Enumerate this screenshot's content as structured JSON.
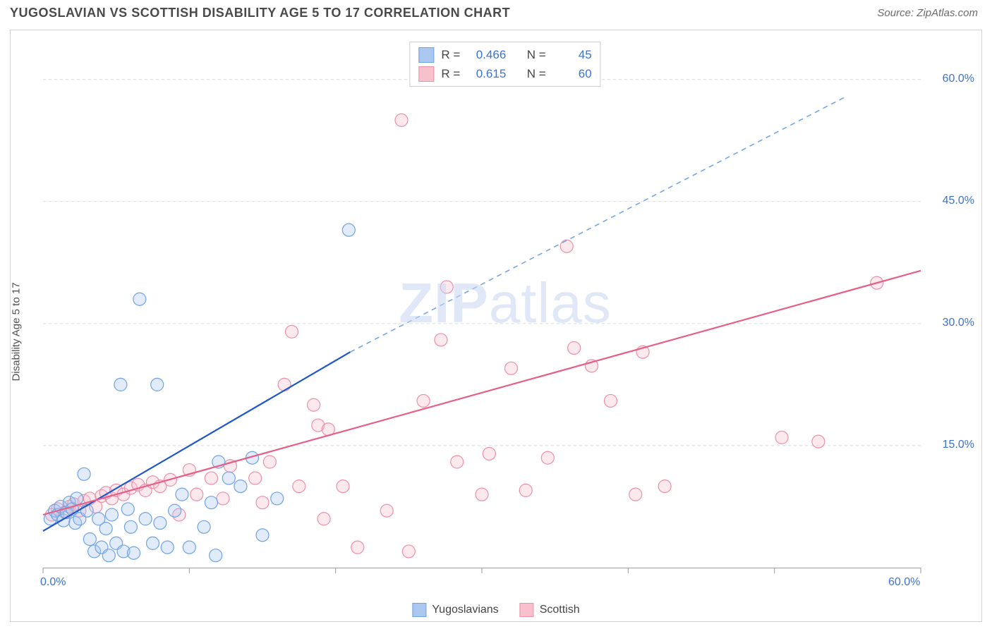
{
  "header": {
    "title": "YUGOSLAVIAN VS SCOTTISH DISABILITY AGE 5 TO 17 CORRELATION CHART",
    "source_prefix": "Source: ",
    "source_name": "ZipAtlas.com"
  },
  "y_axis_label": "Disability Age 5 to 17",
  "watermark": {
    "left": "ZIP",
    "right": "atlas"
  },
  "chart": {
    "type": "scatter",
    "background_color": "#ffffff",
    "grid_color": "#d9d9d9",
    "grid_dash": "4,4",
    "border_color": "#d0d0d0",
    "axis_color": "#9a9a9a",
    "tick_label_color": "#3b72d4",
    "tick_label_fontsize": 16,
    "xlim": [
      0,
      60
    ],
    "ylim": [
      0,
      65
    ],
    "x_ticks": [
      0,
      10,
      20,
      30,
      40,
      50,
      60
    ],
    "x_tick_labels": [
      "0.0%",
      "",
      "",
      "",
      "",
      "",
      "60.0%"
    ],
    "y_ticks": [
      15,
      30,
      45,
      60
    ],
    "y_tick_labels": [
      "15.0%",
      "30.0%",
      "45.0%",
      "60.0%"
    ],
    "marker_radius": 9,
    "marker_stroke_width": 1.2,
    "marker_fill_opacity": 0.35,
    "series": [
      {
        "name": "Yugoslavians",
        "color_fill": "#a9c7ef",
        "color_stroke": "#6fa3e3",
        "points": [
          [
            0.5,
            6.0
          ],
          [
            0.8,
            7.0
          ],
          [
            1.0,
            6.5
          ],
          [
            1.2,
            7.5
          ],
          [
            1.4,
            5.8
          ],
          [
            1.6,
            6.8
          ],
          [
            1.8,
            8.0
          ],
          [
            2.0,
            7.2
          ],
          [
            2.2,
            5.5
          ],
          [
            2.5,
            6.0
          ],
          [
            2.8,
            11.5
          ],
          [
            3.0,
            7.0
          ],
          [
            3.2,
            3.5
          ],
          [
            3.5,
            2.0
          ],
          [
            4.0,
            2.5
          ],
          [
            4.3,
            4.8
          ],
          [
            4.5,
            1.5
          ],
          [
            5.0,
            3.0
          ],
          [
            5.3,
            22.5
          ],
          [
            5.5,
            2.0
          ],
          [
            5.8,
            7.2
          ],
          [
            6.0,
            5.0
          ],
          [
            6.2,
            1.8
          ],
          [
            6.6,
            33.0
          ],
          [
            7.0,
            6.0
          ],
          [
            7.5,
            3.0
          ],
          [
            7.8,
            22.5
          ],
          [
            8.0,
            5.5
          ],
          [
            8.5,
            2.5
          ],
          [
            9.0,
            7.0
          ],
          [
            9.5,
            9.0
          ],
          [
            10.0,
            2.5
          ],
          [
            11.0,
            5.0
          ],
          [
            11.5,
            8.0
          ],
          [
            12.0,
            13.0
          ],
          [
            12.7,
            11.0
          ],
          [
            13.5,
            10.0
          ],
          [
            14.3,
            13.5
          ],
          [
            15.0,
            4.0
          ],
          [
            16.0,
            8.5
          ],
          [
            20.9,
            41.5
          ],
          [
            11.8,
            1.5
          ],
          [
            3.8,
            6.0
          ],
          [
            4.7,
            6.5
          ],
          [
            2.3,
            8.5
          ]
        ],
        "trend": {
          "x1": 0,
          "y1": 4.5,
          "x2": 21,
          "y2": 26.5,
          "ext_x2": 55,
          "ext_y2": 58.0,
          "line_width": 2.2,
          "solid_color": "#1e57c9",
          "dash_color": "#6fa3e3",
          "dash": "7,6"
        }
      },
      {
        "name": "Scottish",
        "color_fill": "#f6c0cd",
        "color_stroke": "#ec8fa8",
        "points": [
          [
            0.6,
            6.5
          ],
          [
            1.0,
            7.2
          ],
          [
            1.5,
            6.8
          ],
          [
            1.8,
            7.5
          ],
          [
            2.1,
            7.8
          ],
          [
            2.5,
            7.0
          ],
          [
            2.8,
            8.2
          ],
          [
            3.2,
            8.5
          ],
          [
            3.6,
            7.5
          ],
          [
            4.0,
            8.8
          ],
          [
            4.3,
            9.2
          ],
          [
            4.7,
            8.5
          ],
          [
            5.0,
            9.5
          ],
          [
            5.5,
            9.0
          ],
          [
            6.0,
            9.8
          ],
          [
            6.5,
            10.2
          ],
          [
            7.0,
            9.5
          ],
          [
            7.5,
            10.5
          ],
          [
            8.0,
            10.0
          ],
          [
            8.7,
            10.8
          ],
          [
            9.3,
            6.5
          ],
          [
            10.0,
            12.0
          ],
          [
            10.5,
            9.0
          ],
          [
            11.5,
            11.0
          ],
          [
            12.3,
            8.5
          ],
          [
            12.8,
            12.5
          ],
          [
            14.5,
            11.0
          ],
          [
            15.0,
            8.0
          ],
          [
            15.5,
            13.0
          ],
          [
            16.5,
            22.5
          ],
          [
            17.0,
            29.0
          ],
          [
            17.5,
            10.0
          ],
          [
            18.5,
            20.0
          ],
          [
            18.8,
            17.5
          ],
          [
            19.2,
            6.0
          ],
          [
            19.5,
            17.0
          ],
          [
            20.5,
            10.0
          ],
          [
            21.5,
            2.5
          ],
          [
            23.5,
            7.0
          ],
          [
            24.5,
            55.0
          ],
          [
            25.0,
            2.0
          ],
          [
            26.0,
            20.5
          ],
          [
            27.2,
            28.0
          ],
          [
            27.6,
            34.5
          ],
          [
            28.3,
            13.0
          ],
          [
            30.0,
            9.0
          ],
          [
            30.5,
            14.0
          ],
          [
            32.0,
            24.5
          ],
          [
            34.5,
            13.5
          ],
          [
            35.8,
            39.5
          ],
          [
            36.3,
            27.0
          ],
          [
            37.5,
            24.8
          ],
          [
            38.8,
            20.5
          ],
          [
            40.5,
            9.0
          ],
          [
            41.0,
            26.5
          ],
          [
            42.5,
            10.0
          ],
          [
            50.5,
            16.0
          ],
          [
            53.0,
            15.5
          ],
          [
            57.0,
            35.0
          ],
          [
            33.0,
            9.5
          ]
        ],
        "trend": {
          "x1": 0,
          "y1": 6.5,
          "x2": 60,
          "y2": 36.5,
          "line_width": 2.2,
          "solid_color": "#e55f86"
        }
      }
    ]
  },
  "legend_top": {
    "rows": [
      {
        "swatch_fill": "#a9c7ef",
        "swatch_stroke": "#6fa3e3",
        "r_label": "R =",
        "r_value": "0.466",
        "n_label": "N =",
        "n_value": "45"
      },
      {
        "swatch_fill": "#f6c0cd",
        "swatch_stroke": "#ec8fa8",
        "r_label": "R =",
        "r_value": "0.615",
        "n_label": "N =",
        "n_value": "60"
      }
    ]
  },
  "legend_bottom": {
    "items": [
      {
        "swatch_fill": "#a9c7ef",
        "swatch_stroke": "#6fa3e3",
        "label": "Yugoslavians"
      },
      {
        "swatch_fill": "#f6c0cd",
        "swatch_stroke": "#ec8fa8",
        "label": "Scottish"
      }
    ]
  }
}
